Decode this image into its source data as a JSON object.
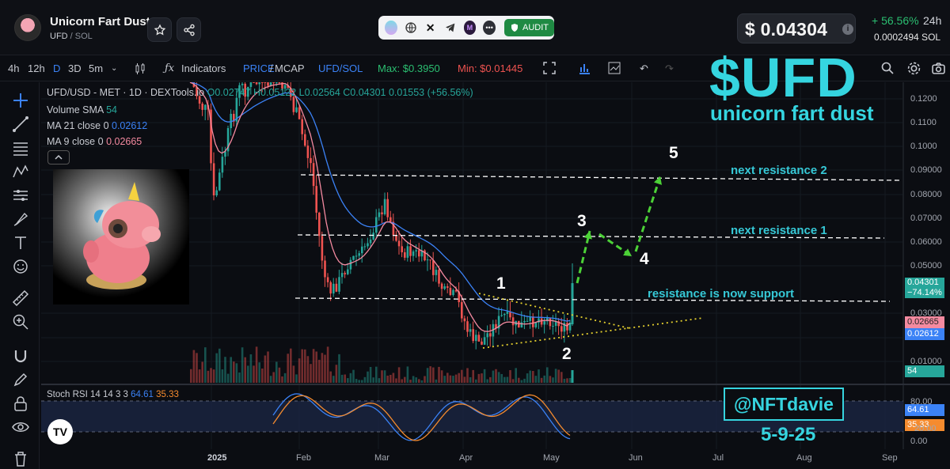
{
  "header": {
    "token_name": "Unicorn Fart Dust",
    "token_symbol": "UFD",
    "token_chain": "SOL",
    "audit_label": "AUDIT",
    "price": "$ 0.04304",
    "price_info_icon": "i",
    "change": "+ 56.56%",
    "change_period": "24h",
    "price_in_sol": "0.0002494 SOL",
    "icons": [
      "star-icon",
      "share-icon",
      "website-icon",
      "x-icon",
      "telegram-icon",
      "app-icon",
      "more-icon",
      "shield-icon"
    ]
  },
  "toolbar": {
    "timeframes": [
      "4h",
      "12h",
      "D",
      "3D",
      "5m"
    ],
    "active_timeframe": "D",
    "indicators_label": "Indicators",
    "price_label": "PRICE",
    "mcap_label": "MCAP",
    "pair_label": "UFD/SOL",
    "max_label": "Max: $0.3950",
    "min_label": "Min: $0.01445"
  },
  "legend": {
    "title": "UFD/USD - MET · 1D · DEXTools.io",
    "ohlc": "O0.02747 H0.05122 L0.02564 C0.04301 0.01553 (+56.56%)",
    "volume_label": "Volume SMA",
    "volume_value": "54",
    "ma21_label": "MA 21 close 0",
    "ma21_value": "0.02612",
    "ma9_label": "MA 9 close 0",
    "ma9_value": "0.02665",
    "stoch_label": "Stoch RSI 14 14 3 3",
    "stoch_k": "64.61",
    "stoch_d": "35.33"
  },
  "overlay": {
    "ticker": "$UFD",
    "subtitle": "unicorn fart dust",
    "resistance_2": "next resistance 2",
    "resistance_1": "next resistance 1",
    "support": "resistance is now support",
    "waves": [
      "1",
      "2",
      "3",
      "4",
      "5"
    ],
    "handle": "@NFTdavie",
    "date": "5-9-25"
  },
  "price_axis": {
    "ticks": [
      "0.1200",
      "0.1100",
      "0.1000",
      "0.09000",
      "0.08000",
      "0.07000",
      "0.06000",
      "0.05000",
      "0.03000",
      "0.02000",
      "0.01000"
    ],
    "last_price": "0.04301",
    "last_change": "−74.14%",
    "ma9": "0.02665",
    "ma21": "0.02612",
    "volume": "54"
  },
  "stoch_axis": {
    "ticks": [
      "80.00",
      "20.00",
      "0.00"
    ],
    "k": "64.61",
    "d": "35.33"
  },
  "time_axis": [
    "2025",
    "Feb",
    "Mar",
    "Apr",
    "May",
    "Jun",
    "Jul",
    "Aug",
    "Sep"
  ],
  "colors": {
    "up": "#26a69a",
    "down": "#ef5350",
    "accent": "#36d4df",
    "arrow": "#4cd137",
    "ma21": "#3b82f6",
    "ma9": "#f48aa0"
  }
}
